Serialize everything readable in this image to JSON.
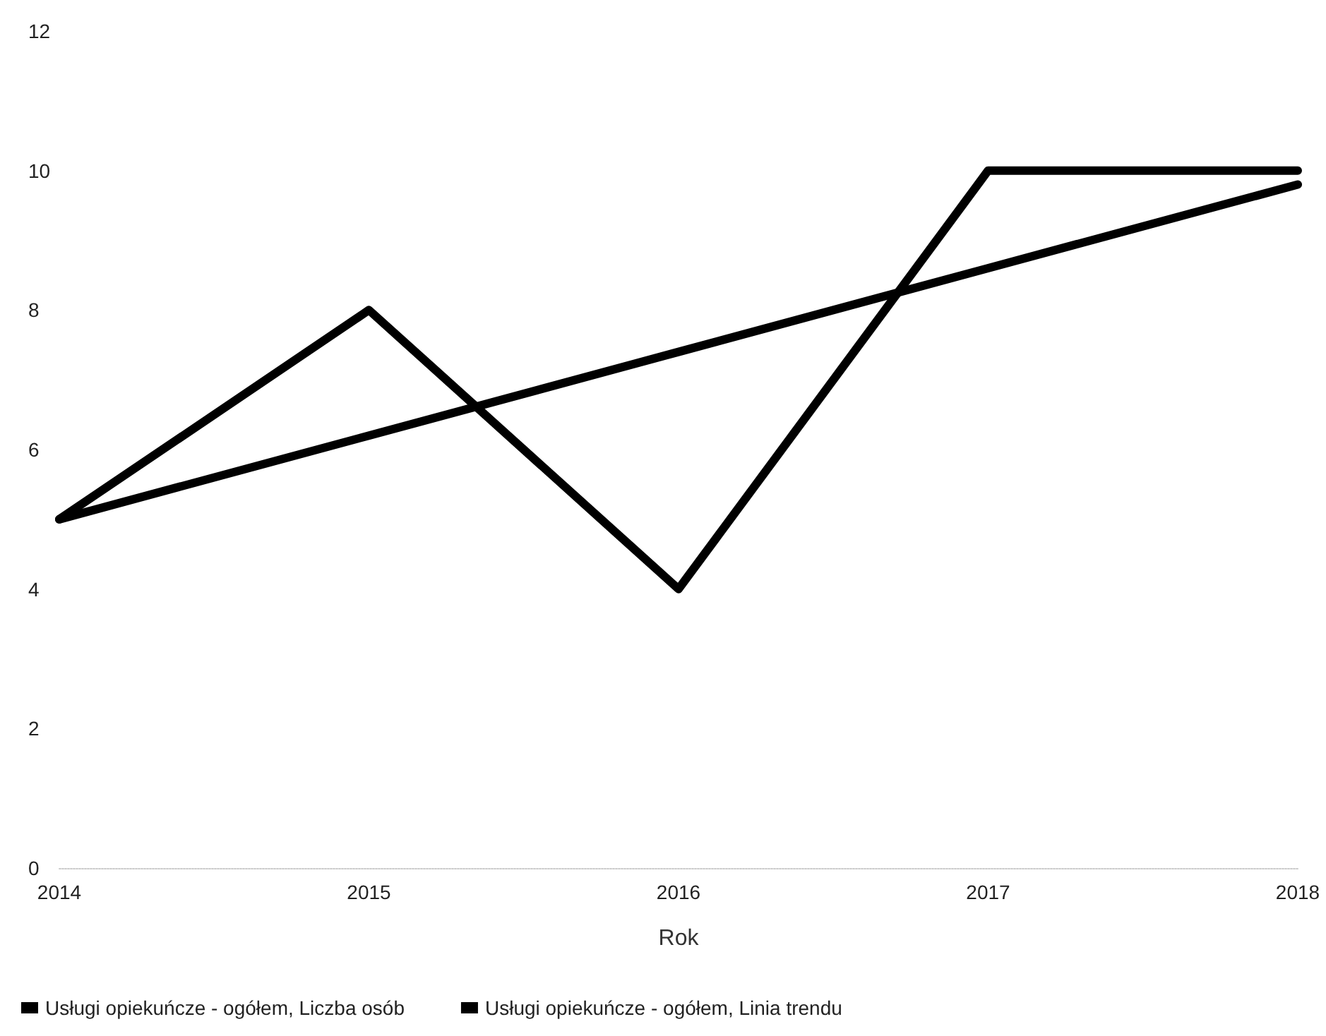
{
  "chart_data": {
    "type": "line",
    "xlabel": "Rok",
    "categories": [
      "2014",
      "2015",
      "2016",
      "2017",
      "2018"
    ],
    "series": [
      {
        "name": "Usługi opiekuńcze - ogółem, Liczba osób",
        "color": "#000000",
        "values": [
          5,
          8,
          4,
          10,
          10
        ]
      },
      {
        "name": "Usługi opiekuńcze - ogółem, Linia trendu",
        "color": "#000000",
        "values": [
          5.0,
          6.2,
          7.4,
          8.6,
          9.8
        ]
      }
    ],
    "ylim": [
      0,
      12
    ],
    "yticks": [
      0,
      2,
      4,
      6,
      8,
      10,
      12
    ],
    "grid": false,
    "legend": "bottom",
    "marker": "none",
    "line_style": "solid"
  }
}
